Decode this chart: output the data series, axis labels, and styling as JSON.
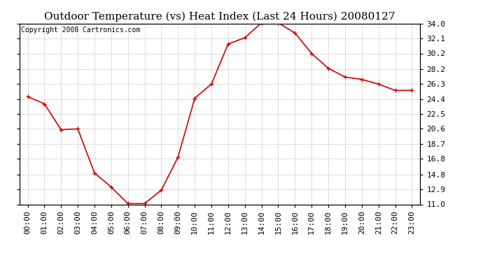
{
  "title": "Outdoor Temperature (vs) Heat Index (Last 24 Hours) 20080127",
  "copyright": "Copyright 2008 Cartronics.com",
  "x_labels": [
    "00:00",
    "01:00",
    "02:00",
    "03:00",
    "04:00",
    "05:00",
    "06:00",
    "07:00",
    "08:00",
    "09:00",
    "10:00",
    "11:00",
    "12:00",
    "13:00",
    "14:00",
    "15:00",
    "16:00",
    "17:00",
    "18:00",
    "19:00",
    "20:00",
    "21:00",
    "22:00",
    "23:00"
  ],
  "y_values": [
    24.7,
    23.8,
    20.5,
    20.6,
    15.0,
    13.2,
    11.1,
    11.1,
    12.8,
    17.0,
    24.5,
    26.3,
    31.4,
    32.2,
    34.1,
    34.1,
    32.8,
    30.2,
    28.3,
    27.2,
    26.9,
    26.3,
    25.5,
    25.5
  ],
  "line_color": "#cc0000",
  "marker": "+",
  "marker_size": 5,
  "marker_color": "#cc0000",
  "bg_color": "#ffffff",
  "grid_color": "#bbbbbb",
  "y_ticks": [
    11.0,
    12.9,
    14.8,
    16.8,
    18.7,
    20.6,
    22.5,
    24.4,
    26.3,
    28.2,
    30.2,
    32.1,
    34.0
  ],
  "ylim": [
    11.0,
    34.0
  ],
  "title_fontsize": 11,
  "copyright_fontsize": 7,
  "tick_fontsize": 8
}
